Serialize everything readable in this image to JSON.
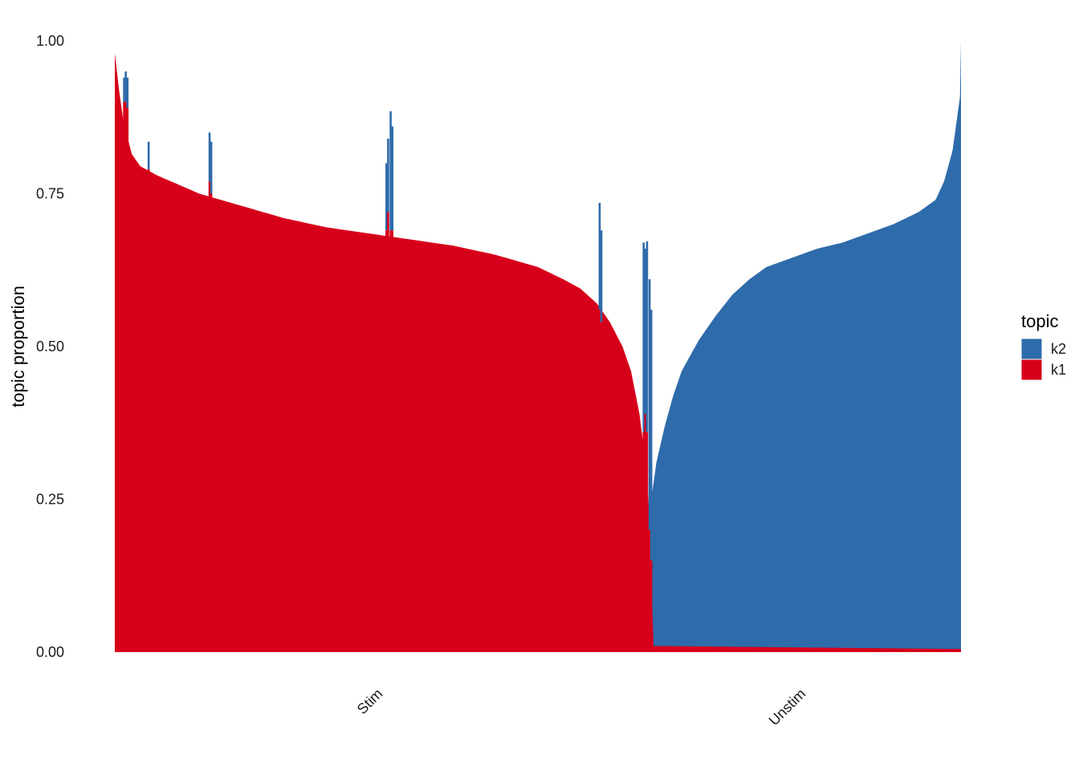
{
  "chart_data": {
    "type": "area",
    "subtype": "stacked-structure-plot",
    "title": "",
    "xlabel": "",
    "ylabel": "topic proportion",
    "ylim": [
      0,
      1
    ],
    "y_ticks": [
      "0.00",
      "0.25",
      "0.50",
      "0.75",
      "1.00"
    ],
    "y_tick_values": [
      0,
      0.25,
      0.5,
      0.75,
      1.0
    ],
    "grid": false,
    "legend_position": "right",
    "groups": [
      {
        "label": "Stim",
        "sample_fraction_start": 0.0,
        "sample_fraction_end": 0.635
      },
      {
        "label": "Unstim",
        "sample_fraction_start": 0.635,
        "sample_fraction_end": 1.0
      }
    ],
    "legend": {
      "title": "topic",
      "entries": [
        {
          "name": "k2",
          "color": "#2E6BAA"
        },
        {
          "name": "k1",
          "color": "#D7001A"
        }
      ]
    },
    "series": [
      {
        "name": "k1",
        "color": "#D7001A",
        "description": "k1 proportion per sample (bottom layer)",
        "profile": [
          [
            0.0,
            0.98
          ],
          [
            0.005,
            0.92
          ],
          [
            0.01,
            0.87
          ],
          [
            0.02,
            0.815
          ],
          [
            0.03,
            0.795
          ],
          [
            0.05,
            0.78
          ],
          [
            0.1,
            0.75
          ],
          [
            0.15,
            0.73
          ],
          [
            0.2,
            0.71
          ],
          [
            0.25,
            0.695
          ],
          [
            0.3,
            0.685
          ],
          [
            0.35,
            0.675
          ],
          [
            0.4,
            0.665
          ],
          [
            0.45,
            0.65
          ],
          [
            0.5,
            0.63
          ],
          [
            0.53,
            0.61
          ],
          [
            0.55,
            0.595
          ],
          [
            0.57,
            0.57
          ],
          [
            0.585,
            0.54
          ],
          [
            0.6,
            0.5
          ],
          [
            0.61,
            0.46
          ],
          [
            0.62,
            0.39
          ],
          [
            0.628,
            0.3
          ],
          [
            0.632,
            0.22
          ],
          [
            0.635,
            0.08
          ],
          [
            0.636,
            0.01
          ],
          [
            1.0,
            0.005
          ]
        ]
      },
      {
        "name": "k2",
        "color": "#2E6BAA",
        "description": "k2 proportion per sample (stacked on k1)",
        "profile": [
          [
            0.635,
            0.26
          ],
          [
            0.64,
            0.31
          ],
          [
            0.65,
            0.37
          ],
          [
            0.66,
            0.42
          ],
          [
            0.67,
            0.46
          ],
          [
            0.69,
            0.51
          ],
          [
            0.71,
            0.55
          ],
          [
            0.73,
            0.585
          ],
          [
            0.75,
            0.61
          ],
          [
            0.77,
            0.63
          ],
          [
            0.8,
            0.645
          ],
          [
            0.83,
            0.66
          ],
          [
            0.86,
            0.67
          ],
          [
            0.89,
            0.685
          ],
          [
            0.92,
            0.7
          ],
          [
            0.95,
            0.72
          ],
          [
            0.97,
            0.74
          ],
          [
            0.98,
            0.77
          ],
          [
            0.99,
            0.82
          ],
          [
            0.995,
            0.87
          ],
          [
            0.999,
            0.91
          ],
          [
            1.0,
            1.0
          ]
        ]
      }
    ],
    "spikes": [
      {
        "x": 0.011,
        "k1": 0.9,
        "k2_top": 0.94
      },
      {
        "x": 0.013,
        "k1": 0.9,
        "k2_top": 0.95
      },
      {
        "x": 0.015,
        "k1": 0.89,
        "k2_top": 0.94
      },
      {
        "x": 0.04,
        "k1": 0.79,
        "k2_top": 0.835
      },
      {
        "x": 0.112,
        "k1": 0.77,
        "k2_top": 0.85
      },
      {
        "x": 0.114,
        "k1": 0.75,
        "k2_top": 0.835
      },
      {
        "x": 0.321,
        "k1": 0.69,
        "k2_top": 0.8
      },
      {
        "x": 0.323,
        "k1": 0.72,
        "k2_top": 0.84
      },
      {
        "x": 0.326,
        "k1": 0.69,
        "k2_top": 0.885
      },
      {
        "x": 0.328,
        "k1": 0.69,
        "k2_top": 0.86
      },
      {
        "x": 0.573,
        "k1": 0.56,
        "k2_top": 0.735
      },
      {
        "x": 0.575,
        "k1": 0.54,
        "k2_top": 0.69
      },
      {
        "x": 0.625,
        "k1": 0.36,
        "k2_top": 0.67
      },
      {
        "x": 0.627,
        "k1": 0.39,
        "k2_top": 0.66
      },
      {
        "x": 0.629,
        "k1": 0.36,
        "k2_top": 0.672
      },
      {
        "x": 0.632,
        "k1": 0.2,
        "k2_top": 0.61
      },
      {
        "x": 0.634,
        "k1": 0.15,
        "k2_top": 0.56
      }
    ]
  }
}
